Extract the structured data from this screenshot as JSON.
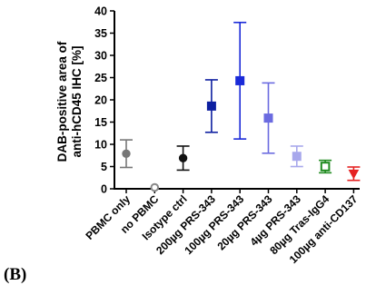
{
  "panel_label": "(B)",
  "chart_data": {
    "type": "scatter",
    "ylabel_line1": "DAB-positive area of",
    "ylabel_line2": "anti-hCD45 IHC [%]",
    "ylim": [
      0,
      40
    ],
    "yticks": [
      "0",
      "5",
      "10",
      "15",
      "20",
      "25",
      "30",
      "35",
      "40"
    ],
    "categories": [
      "PBMC only",
      "no PBMC",
      "Isotype ctrl",
      "200µg PRS-343",
      "100µg PRS-343",
      "20µg PRS-343",
      "4µg PRS-343",
      "80µg Tras-IgG4",
      "100µg anti-CD137"
    ],
    "means": [
      7.9,
      0.1,
      6.9,
      18.6,
      24.3,
      15.9,
      7.3,
      5.0,
      3.4
    ],
    "errors": [
      3.1,
      0.2,
      2.7,
      5.9,
      13.1,
      7.9,
      2.3,
      1.4,
      1.5
    ],
    "markers": [
      "circle",
      "circle-open",
      "circle",
      "square",
      "square",
      "square",
      "square",
      "square-open",
      "triangle-down"
    ],
    "colors": [
      "#777777",
      "#888888",
      "#111111",
      "#0d1fa0",
      "#1a2ad8",
      "#6b6be0",
      "#a8a8ec",
      "#1f8a1f",
      "#e52222"
    ],
    "grid": false
  }
}
